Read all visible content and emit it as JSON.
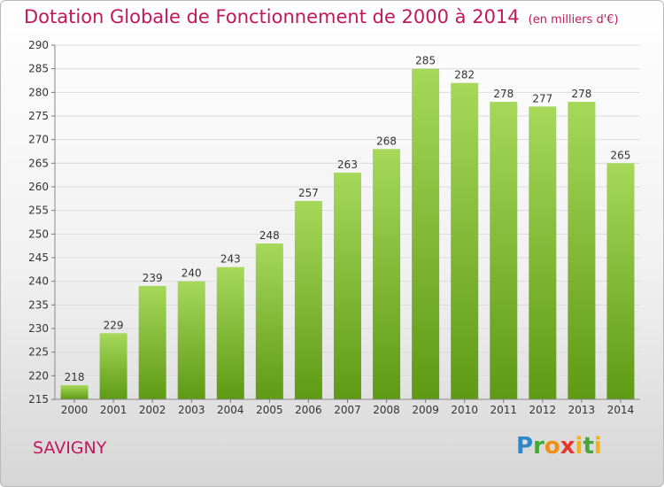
{
  "header": {
    "title": "Dotation Globale de Fonctionnement de 2000 à 2014",
    "unit": "(en milliers d'€)"
  },
  "footer": {
    "city": "SAVIGNY",
    "logo": "Proxiti"
  },
  "colors": {
    "bar_top": "#a6d85a",
    "bar_bottom": "#5e9a14",
    "title": "#c0185a",
    "grid": "#dcdcdc"
  },
  "chart_data": {
    "type": "bar",
    "title": "Dotation Globale de Fonctionnement de 2000 à 2014",
    "subtitle": "(en milliers d'€)",
    "xlabel": "",
    "ylabel": "",
    "categories": [
      "2000",
      "2001",
      "2002",
      "2003",
      "2004",
      "2005",
      "2006",
      "2007",
      "2008",
      "2009",
      "2010",
      "2011",
      "2012",
      "2013",
      "2014"
    ],
    "values": [
      218,
      229,
      239,
      240,
      243,
      248,
      257,
      263,
      268,
      285,
      282,
      278,
      277,
      278,
      265
    ],
    "ylim": [
      215,
      290
    ],
    "yticks": [
      215,
      220,
      225,
      230,
      235,
      240,
      245,
      250,
      255,
      260,
      265,
      270,
      275,
      280,
      285,
      290
    ],
    "grid": true,
    "legend": "none",
    "data_labels": true
  }
}
